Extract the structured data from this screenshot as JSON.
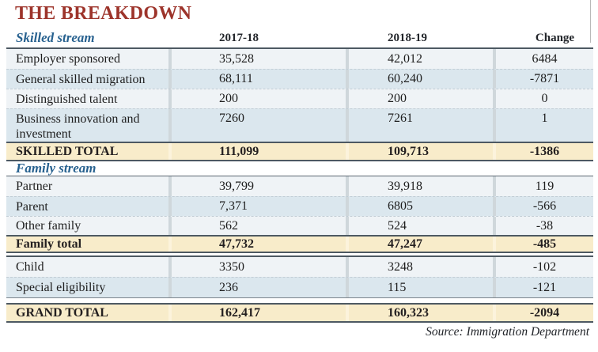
{
  "title": "THE BREAKDOWN",
  "source": "Source: Immigration Department",
  "colors": {
    "title_red": "#9d342b",
    "stream_blue": "#27618f",
    "row_pale": "#eff3f6",
    "row_blue": "#dbe7ee",
    "total_tan": "#f8ecca",
    "rule_dark": "#4d5962"
  },
  "chart_data": {
    "type": "table",
    "title": "THE BREAKDOWN",
    "source": "Source: Immigration Department",
    "columns": [
      "2017-18",
      "2018-19",
      "Change"
    ],
    "sections": [
      {
        "header": "Skilled stream",
        "rows": [
          [
            "Employer sponsored",
            "35,528",
            "42,012",
            "6484"
          ],
          [
            "General skilled migration",
            "68,111",
            "60,240",
            "-7871"
          ],
          [
            "Distinguished talent",
            "200",
            "200",
            "0"
          ],
          [
            "Business innovation and investment",
            "7260",
            "7261",
            "1"
          ]
        ],
        "total": [
          "SKILLED TOTAL",
          "111,099",
          "109,713",
          "-1386"
        ]
      },
      {
        "header": "Family stream",
        "rows": [
          [
            "Partner",
            "39,799",
            "39,918",
            "119"
          ],
          [
            "Parent",
            "7,371",
            "6805",
            "-566"
          ],
          [
            "Other family",
            "562",
            "524",
            "-38"
          ]
        ],
        "total": [
          "Family total",
          "47,732",
          "47,247",
          "-485"
        ]
      },
      {
        "header": "",
        "rows": [
          [
            "Child",
            "3350",
            "3248",
            "-102"
          ],
          [
            "Special eligibility",
            "236",
            "115",
            "-121"
          ]
        ],
        "total": [
          "GRAND TOTAL",
          "162,417",
          "160,323",
          "-2094"
        ]
      }
    ]
  }
}
